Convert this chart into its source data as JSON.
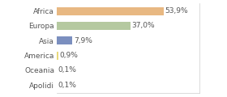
{
  "categories": [
    "Africa",
    "Europa",
    "Asia",
    "America",
    "Oceania",
    "Apolidi"
  ],
  "values": [
    53.9,
    37.0,
    7.9,
    0.9,
    0.1,
    0.1
  ],
  "labels": [
    "53,9%",
    "37,0%",
    "7,9%",
    "0,9%",
    "0,1%",
    "0,1%"
  ],
  "bar_colors": [
    "#e8b882",
    "#b5c9a0",
    "#7b8fbf",
    "#e8d87a",
    "#e8d87a",
    "#e8d87a"
  ],
  "background_color": "#ffffff",
  "xlim": [
    0,
    72
  ],
  "bar_height": 0.55,
  "label_fontsize": 6.5,
  "tick_fontsize": 6.5,
  "text_color": "#555555",
  "spine_color": "#cccccc"
}
